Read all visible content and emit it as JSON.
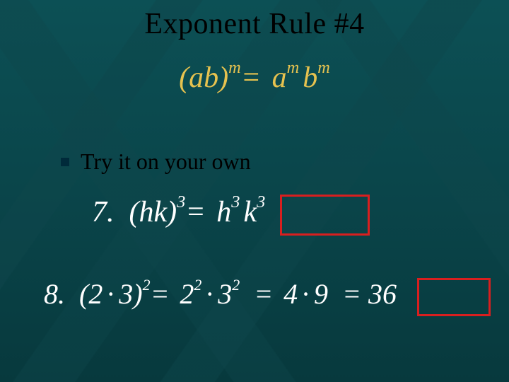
{
  "colors": {
    "background_top": "#0c5055",
    "background_bottom": "#07393d",
    "title_color": "#000000",
    "formula_color": "#e6c24f",
    "bullet_text_color": "#000000",
    "bullet_square_color": "#002a3a",
    "example_text_color": "#ffffff",
    "highlight_box_color": "#d81f1f"
  },
  "title": {
    "text": "Exponent Rule #4",
    "fontsize": 42
  },
  "formula": {
    "lhs_open": "(",
    "lhs_a": "a",
    "lhs_b": "b",
    "lhs_close": ")",
    "exp_m": "m",
    "eq": "=",
    "rhs_a": "a",
    "rhs_b": "b",
    "fontsize": 42
  },
  "bullet": {
    "text": "Try it on your own",
    "fontsize": 32
  },
  "example7": {
    "num": "7.",
    "open": "(",
    "h": "h",
    "k": "k",
    "close": ")",
    "exp3": "3",
    "eq": "=",
    "fontsize": 42
  },
  "example8": {
    "num": "8.",
    "open": "(",
    "two": "2",
    "dot": "·",
    "three": "3",
    "close": ")",
    "exp2": "2",
    "eq": "=",
    "four": "4",
    "nine": "9",
    "result": "36",
    "fontsize": 40
  }
}
